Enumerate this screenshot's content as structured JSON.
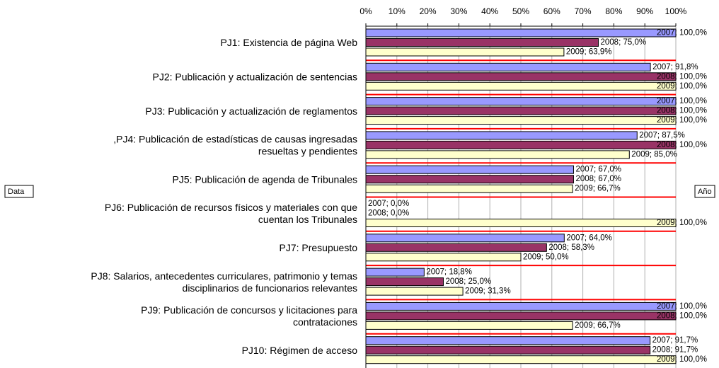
{
  "chart_data": {
    "type": "bar",
    "orientation": "horizontal",
    "categories": [
      "PJ1: Existencia de página Web",
      "PJ2: Publicación y actualización de sentencias",
      "PJ3: Publicación y actualización de reglamentos",
      ",PJ4: Publicación de estadísticas de causas ingresadas\nresueltas y pendientes",
      "PJ5: Publicación de agenda de Tribunales",
      "PJ6: Publicación de recursos físicos y materiales con que\ncuentan los Tribunales",
      "PJ7: Presupuesto",
      "PJ8: Salarios, antecedentes curriculares, patrimonio y temas\ndisciplinarios de funcionarios relevantes",
      "PJ9: Publicación de concursos y licitaciones para\ncontrataciones",
      "PJ10: Régimen de acceso"
    ],
    "series": [
      {
        "color": "#9999ff",
        "values": [
          100,
          91.8,
          100,
          87.5,
          67,
          0,
          64,
          18.8,
          100,
          91.7
        ],
        "value_labels": [
          "2007; 100,0%",
          "2007; 91,8%",
          "2007; 100,0%",
          "2007; 87,5%",
          "2007; 67,0%",
          "2007; 0,0%",
          "2007; 64,0%",
          "2007; 18,8%",
          "2007; 100,0%",
          "2007; 91,7%"
        ]
      },
      {
        "color": "#993366",
        "values": [
          75,
          100,
          100,
          100,
          67,
          0,
          58.3,
          25,
          100,
          91.7
        ],
        "value_labels": [
          "2008; 75,0%",
          "2008; 100,0%",
          "2008; 100,0%",
          "2008; 100,0%",
          "2008; 67,0%",
          "2008; 0,0%",
          "2008; 58,3%",
          "2008; 25,0%",
          "2008; 100,0%",
          "2008; 91,7%"
        ]
      },
      {
        "color": "#ffffcc",
        "values": [
          63.9,
          100,
          100,
          85,
          66.7,
          100,
          50,
          31.3,
          66.7,
          100
        ],
        "value_labels": [
          "2009; 63,9%",
          "2009; 100,0%",
          "2009; 100,0%",
          "2009; 85,0%",
          "2009; 66,7%",
          "2009; 100,0%",
          "2009; 50,0%",
          "2009; 31,3%",
          "2009; 66,7%",
          "2009; 100,0%"
        ]
      }
    ],
    "xlim": [
      0,
      100
    ],
    "xticks": [
      {
        "value": 0,
        "label": "0%"
      },
      {
        "value": 10,
        "label": "10%"
      },
      {
        "value": 20,
        "label": "20%"
      },
      {
        "value": 30,
        "label": "30%"
      },
      {
        "value": 40,
        "label": "40%"
      },
      {
        "value": 50,
        "label": "50%"
      },
      {
        "value": 60,
        "label": "60%"
      },
      {
        "value": 70,
        "label": "70%"
      },
      {
        "value": 80,
        "label": "80%"
      },
      {
        "value": 90,
        "label": "90%"
      },
      {
        "value": 100,
        "label": "100%"
      }
    ],
    "grid": true,
    "buttons": [
      "Data",
      "Año"
    ]
  }
}
